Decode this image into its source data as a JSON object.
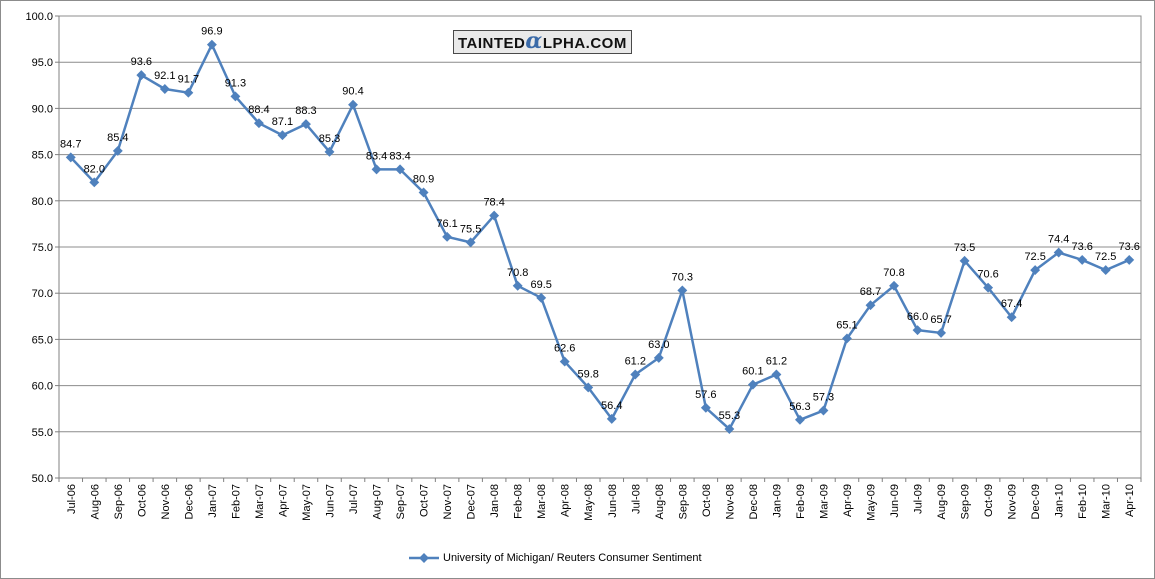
{
  "logo": {
    "before": "TAINTED",
    "alpha": "α",
    "after": "LPHA.COM"
  },
  "colors": {
    "series": "#4f81bd",
    "grid": "#8c8c8c",
    "axis": "#808080"
  },
  "chart_data": {
    "type": "line",
    "title": "",
    "xlabel": "",
    "ylabel": "",
    "ylim": [
      50.0,
      100.0
    ],
    "ytick_step": 5,
    "yticks": [
      "50.0",
      "55.0",
      "60.0",
      "65.0",
      "70.0",
      "75.0",
      "80.0",
      "85.0",
      "90.0",
      "95.0",
      "100.0"
    ],
    "grid": "horizontal",
    "legend_position": "bottom",
    "x": [
      "Jul-06",
      "Aug-06",
      "Sep-06",
      "Oct-06",
      "Nov-06",
      "Dec-06",
      "Jan-07",
      "Feb-07",
      "Mar-07",
      "Apr-07",
      "May-07",
      "Jun-07",
      "Jul-07",
      "Aug-07",
      "Sep-07",
      "Oct-07",
      "Nov-07",
      "Dec-07",
      "Jan-08",
      "Feb-08",
      "Mar-08",
      "Apr-08",
      "May-08",
      "Jun-08",
      "Jul-08",
      "Aug-08",
      "Sep-08",
      "Oct-08",
      "Nov-08",
      "Dec-08",
      "Jan-09",
      "Feb-09",
      "Mar-09",
      "Apr-09",
      "May-09",
      "Jun-09",
      "Jul-09",
      "Aug-09",
      "Sep-09",
      "Oct-09",
      "Nov-09",
      "Dec-09",
      "Jan-10",
      "Feb-10",
      "Mar-10",
      "Apr-10"
    ],
    "series": [
      {
        "name": "University of Michigan/ Reuters Consumer Sentiment",
        "values": [
          84.7,
          82.0,
          85.4,
          93.6,
          92.1,
          91.7,
          96.9,
          91.3,
          88.4,
          87.1,
          88.3,
          85.3,
          90.4,
          83.4,
          83.4,
          80.9,
          76.1,
          75.5,
          78.4,
          70.8,
          69.5,
          62.6,
          59.8,
          56.4,
          61.2,
          63.0,
          70.3,
          57.6,
          55.3,
          60.1,
          61.2,
          56.3,
          57.3,
          65.1,
          68.7,
          70.8,
          66.0,
          65.7,
          73.5,
          70.6,
          67.4,
          72.5,
          74.4,
          73.6,
          72.5,
          73.6
        ],
        "labels": [
          "84.7",
          "82.0",
          "85.4",
          "93.6",
          "92.1",
          "91.7",
          "96.9",
          "91.3",
          "88.4",
          "87.1",
          "88.3",
          "85.3",
          "90.4",
          "83.4",
          "83.4",
          "80.9",
          "76.1",
          "75.5",
          "78.4",
          "70.8",
          "69.5",
          "62.6",
          "59.8",
          "56.4",
          "61.2",
          "63.0",
          "70.3",
          "57.6",
          "55.3",
          "60.1",
          "61.2",
          "56.3",
          "57.3",
          "65.1",
          "68.7",
          "70.8",
          "66.0",
          "65.7",
          "73.5",
          "70.6",
          "67.4",
          "72.5",
          "74.4",
          "73.6",
          "72.5",
          "73.6"
        ]
      }
    ]
  }
}
